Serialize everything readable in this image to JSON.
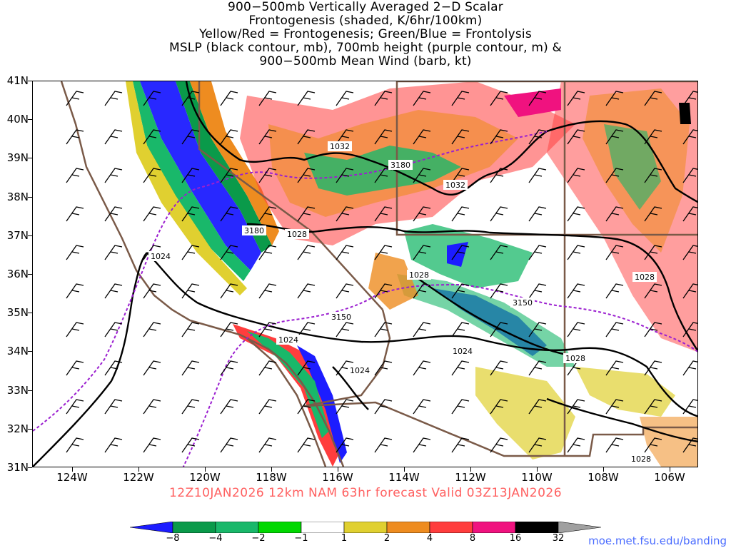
{
  "title": {
    "line1": "900−500mb Vertically Averaged 2−D Scalar",
    "line2": "Frontogenesis (shaded, K/6hr/100km)",
    "line3": "Yellow/Red = Frontogenesis;  Green/Blue = Frontolysis",
    "line4": "MSLP (black contour, mb), 700mb height (purple contour, m) &",
    "line5": "900−500mb Mean Wind (barb, kt)"
  },
  "axes": {
    "lat_labels": [
      "41N",
      "40N",
      "39N",
      "38N",
      "37N",
      "36N",
      "35N",
      "34N",
      "33N",
      "32N",
      "31N"
    ],
    "lon_labels": [
      "124W",
      "122W",
      "120W",
      "118W",
      "116W",
      "114W",
      "112W",
      "110W",
      "108W",
      "106W"
    ]
  },
  "contours": {
    "mslp_labels": [
      "1032",
      "1032",
      "1028",
      "1028",
      "1028",
      "1024",
      "1024",
      "1024",
      "1024",
      "1028",
      "1028"
    ],
    "height_labels": [
      "3180",
      "3180",
      "3150",
      "3150"
    ]
  },
  "run_info": "12Z10JAN2026 12km NAM 63hr forecast Valid 03Z13JAN2026",
  "colorbar": {
    "labels": [
      "−8",
      "−4",
      "−2",
      "−1",
      "1",
      "2",
      "4",
      "8",
      "16",
      "32"
    ],
    "colors": [
      "#1c1cff",
      "#0a9a4a",
      "#19b86a",
      "#00d800",
      "#ffffff",
      "#e0d030",
      "#ee8c20",
      "#ff3d3d",
      "#f0127f",
      "#000000",
      "#a0a0a0"
    ]
  },
  "credit": "moe.met.fsu.edu/banding",
  "colors": {
    "mslp": "#000000",
    "height": "#9b1fd0",
    "borders": "#7a5a48",
    "run_info": "#ff6060",
    "credit": "#4a6cff"
  }
}
